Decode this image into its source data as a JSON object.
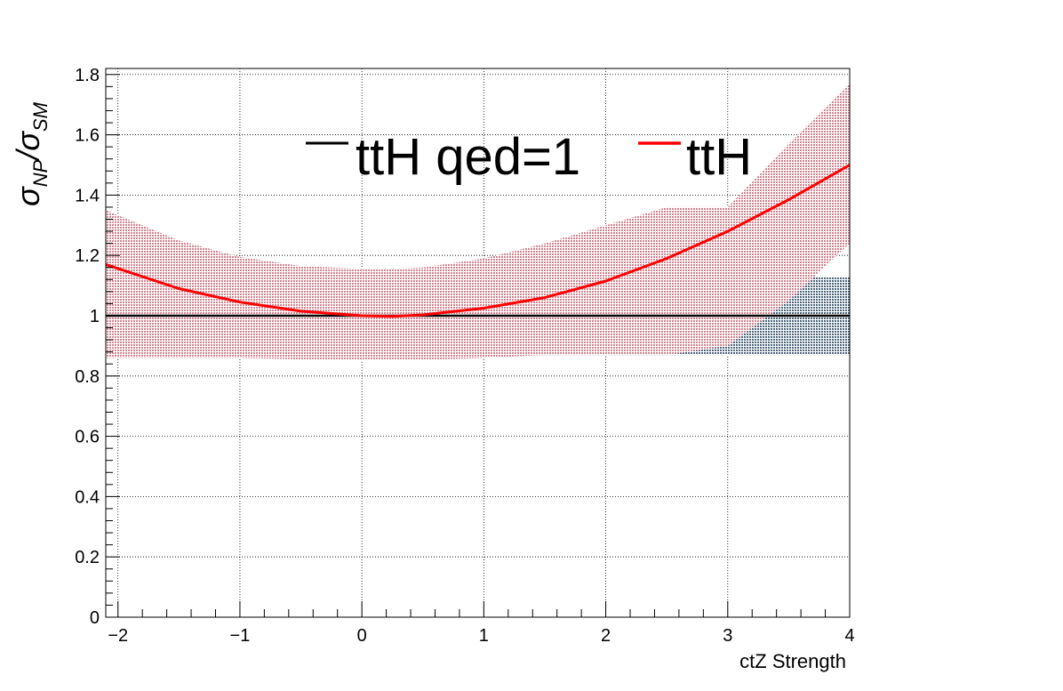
{
  "chart_data": {
    "type": "line",
    "xlabel": "ctZ Strength",
    "ylabel_main": "σ",
    "ylabel_sub1": "NP",
    "ylabel_mid": "/σ",
    "ylabel_sub2": "SM",
    "xlim": [
      -2.1,
      4.0
    ],
    "ylim": [
      0,
      1.82
    ],
    "grid": true,
    "legend_position": "top-center",
    "x_ticks": [
      -2,
      -1,
      0,
      1,
      2,
      3,
      4
    ],
    "x_tick_labels": [
      "−2",
      "−1",
      "0",
      "1",
      "2",
      "3",
      "4"
    ],
    "y_ticks": [
      0,
      0.2,
      0.4,
      0.6,
      0.8,
      1.0,
      1.2,
      1.4,
      1.6,
      1.8
    ],
    "y_tick_labels": [
      "0",
      "0.2",
      "0.4",
      "0.6",
      "0.8",
      "1",
      "1.2",
      "1.4",
      "1.6",
      "1.8"
    ],
    "series": [
      {
        "name": "ttH qed=1",
        "color": "#000000",
        "band_color": "#1f3f5a",
        "x": [
          -2.1,
          4.0
        ],
        "y": [
          1.0,
          1.0
        ],
        "band_lower": [
          0.87,
          0.87
        ],
        "band_upper": [
          1.13,
          1.13
        ]
      },
      {
        "name": "ttH",
        "color": "#ff0000",
        "band_color": "#c06070",
        "x": [
          -2.1,
          -1.5,
          -1.0,
          -0.5,
          0.0,
          0.25,
          0.5,
          1.0,
          1.5,
          2.0,
          2.5,
          3.0,
          3.5,
          4.0
        ],
        "y": [
          1.17,
          1.09,
          1.045,
          1.015,
          1.0,
          0.998,
          1.003,
          1.025,
          1.06,
          1.115,
          1.19,
          1.28,
          1.385,
          1.5
        ],
        "band_lower": [
          0.86,
          0.86,
          0.86,
          0.855,
          0.853,
          0.853,
          0.853,
          0.86,
          0.87,
          0.87,
          0.87,
          0.9,
          1.05,
          1.24
        ],
        "band_upper": [
          1.35,
          1.25,
          1.195,
          1.165,
          1.155,
          1.155,
          1.16,
          1.19,
          1.24,
          1.3,
          1.36,
          1.36,
          1.57,
          1.77
        ]
      }
    ]
  }
}
